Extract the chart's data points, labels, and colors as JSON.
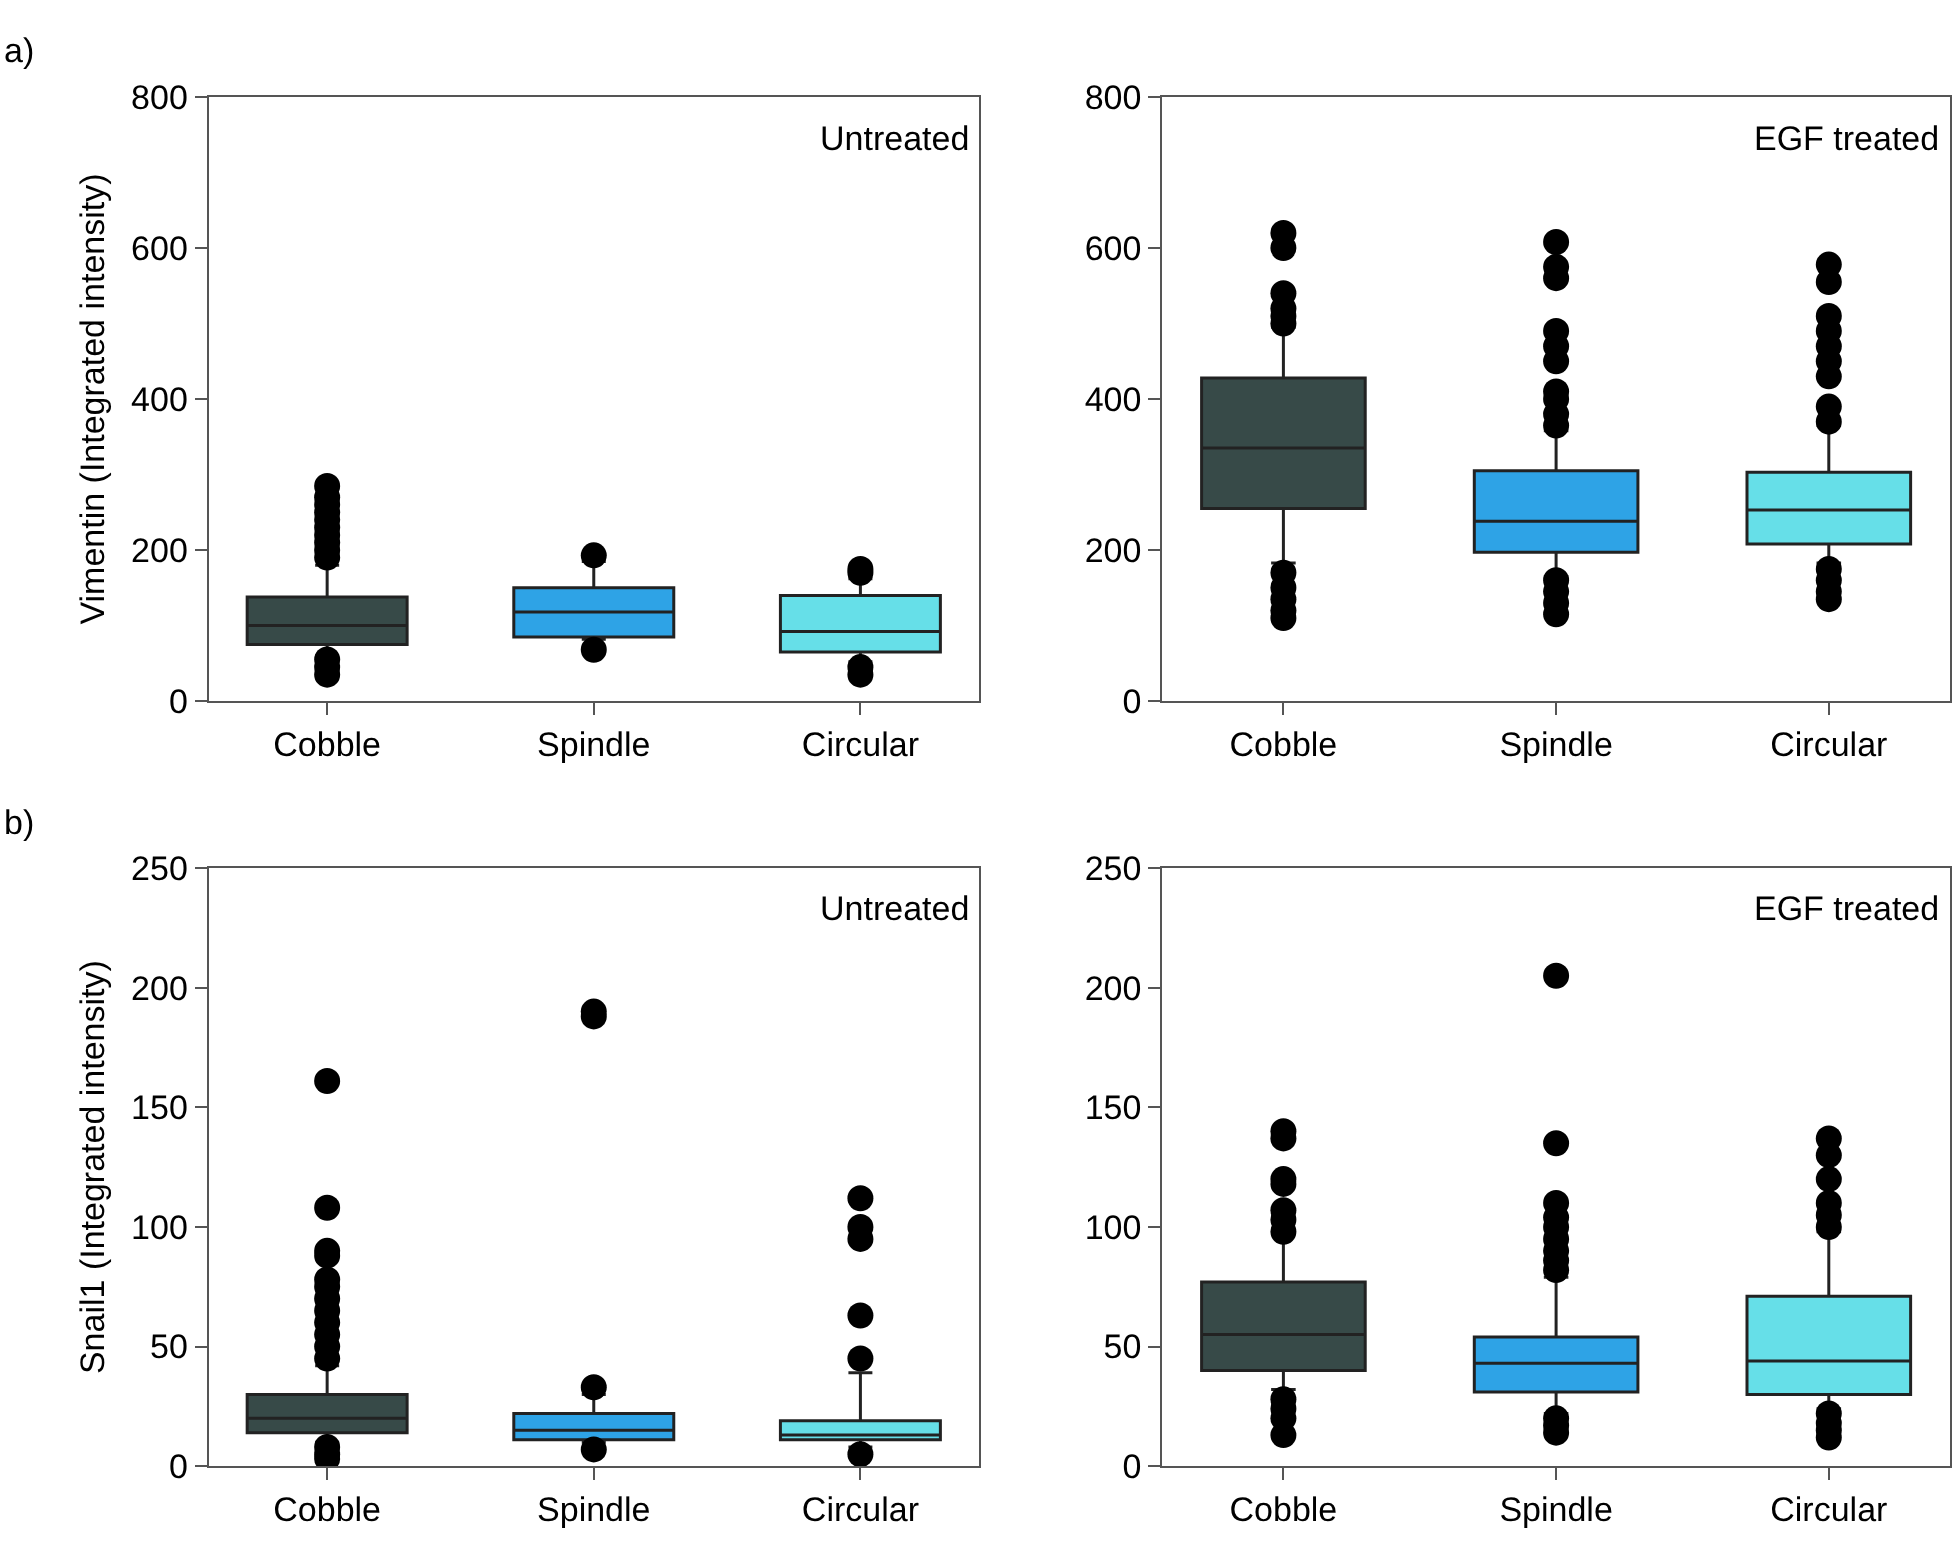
{
  "chart_data": [
    {
      "type": "box",
      "ylabel": "Vimentin (Integrated intensity)",
      "annotations": [
        "Untreated",
        "a)"
      ],
      "categories": [
        "Cobble",
        "Spindle",
        "Circular"
      ],
      "colors": [
        "#374a48",
        "#2ea3e6",
        "#66dfe8"
      ],
      "ylim": [
        0,
        800
      ],
      "yticks": [
        0,
        200,
        400,
        600,
        800
      ],
      "boxes": [
        {
          "low": 60,
          "q1": 75,
          "median": 100,
          "q3": 138,
          "high": 180,
          "outliers": [
            190,
            200,
            210,
            220,
            230,
            240,
            250,
            260,
            270,
            285,
            55,
            45,
            35
          ]
        },
        {
          "low": 82,
          "q1": 85,
          "median": 118,
          "q3": 150,
          "high": 185,
          "outliers": [
            193,
            68
          ]
        },
        {
          "low": 52,
          "q1": 65,
          "median": 92,
          "q3": 140,
          "high": 162,
          "outliers": [
            170,
            175,
            45,
            35
          ]
        }
      ]
    },
    {
      "type": "box",
      "annotations": [
        "EGF treated"
      ],
      "categories": [
        "Cobble",
        "Spindle",
        "Circular"
      ],
      "colors": [
        "#374a48",
        "#2ea3e6",
        "#66dfe8"
      ],
      "ylim": [
        0,
        800
      ],
      "yticks": [
        0,
        200,
        400,
        600,
        800
      ],
      "boxes": [
        {
          "low": 183,
          "q1": 255,
          "median": 335,
          "q3": 428,
          "high": 495,
          "outliers": [
            500,
            510,
            520,
            540,
            600,
            620,
            170,
            150,
            135,
            120,
            110
          ]
        },
        {
          "low": 165,
          "q1": 197,
          "median": 238,
          "q3": 305,
          "high": 358,
          "outliers": [
            365,
            380,
            400,
            410,
            450,
            470,
            490,
            560,
            575,
            608,
            160,
            145,
            130,
            115
          ]
        },
        {
          "low": 183,
          "q1": 208,
          "median": 253,
          "q3": 303,
          "high": 365,
          "outliers": [
            370,
            390,
            430,
            450,
            470,
            490,
            510,
            555,
            578,
            175,
            160,
            145,
            135
          ]
        }
      ]
    },
    {
      "type": "box",
      "ylabel": "Snail1 (Integrated intensity)",
      "annotations": [
        "Untreated",
        "b)"
      ],
      "categories": [
        "Cobble",
        "Spindle",
        "Circular"
      ],
      "colors": [
        "#374a48",
        "#2ea3e6",
        "#66dfe8"
      ],
      "ylim": [
        0,
        250
      ],
      "yticks": [
        0,
        50,
        100,
        150,
        200,
        250
      ],
      "boxes": [
        {
          "low": 10,
          "q1": 14,
          "median": 20,
          "q3": 30,
          "high": 42,
          "outliers": [
            45,
            50,
            55,
            60,
            65,
            70,
            75,
            78,
            88,
            90,
            108,
            161,
            8,
            5,
            3
          ]
        },
        {
          "low": 10,
          "q1": 11,
          "median": 15,
          "q3": 22,
          "high": 30,
          "outliers": [
            33,
            188,
            190,
            7
          ]
        },
        {
          "low": 8,
          "q1": 11,
          "median": 13,
          "q3": 19,
          "high": 39,
          "outliers": [
            45,
            63,
            95,
            100,
            112,
            5
          ]
        }
      ]
    },
    {
      "type": "box",
      "annotations": [
        "EGF treated"
      ],
      "categories": [
        "Cobble",
        "Spindle",
        "Circular"
      ],
      "colors": [
        "#374a48",
        "#2ea3e6",
        "#66dfe8"
      ],
      "ylim": [
        0,
        250
      ],
      "yticks": [
        0,
        50,
        100,
        150,
        200,
        250
      ],
      "boxes": [
        {
          "low": 32,
          "q1": 40,
          "median": 55,
          "q3": 77,
          "high": 97,
          "outliers": [
            98,
            103,
            107,
            118,
            120,
            137,
            140,
            28,
            24,
            20,
            13
          ]
        },
        {
          "low": 22,
          "q1": 31,
          "median": 43,
          "q3": 54,
          "high": 79,
          "outliers": [
            82,
            86,
            90,
            95,
            100,
            104,
            110,
            135,
            205,
            20,
            17,
            14
          ]
        },
        {
          "low": 24,
          "q1": 30,
          "median": 44,
          "q3": 71,
          "high": 98,
          "outliers": [
            100,
            105,
            110,
            120,
            130,
            137,
            22,
            18,
            15,
            12
          ]
        }
      ]
    }
  ]
}
